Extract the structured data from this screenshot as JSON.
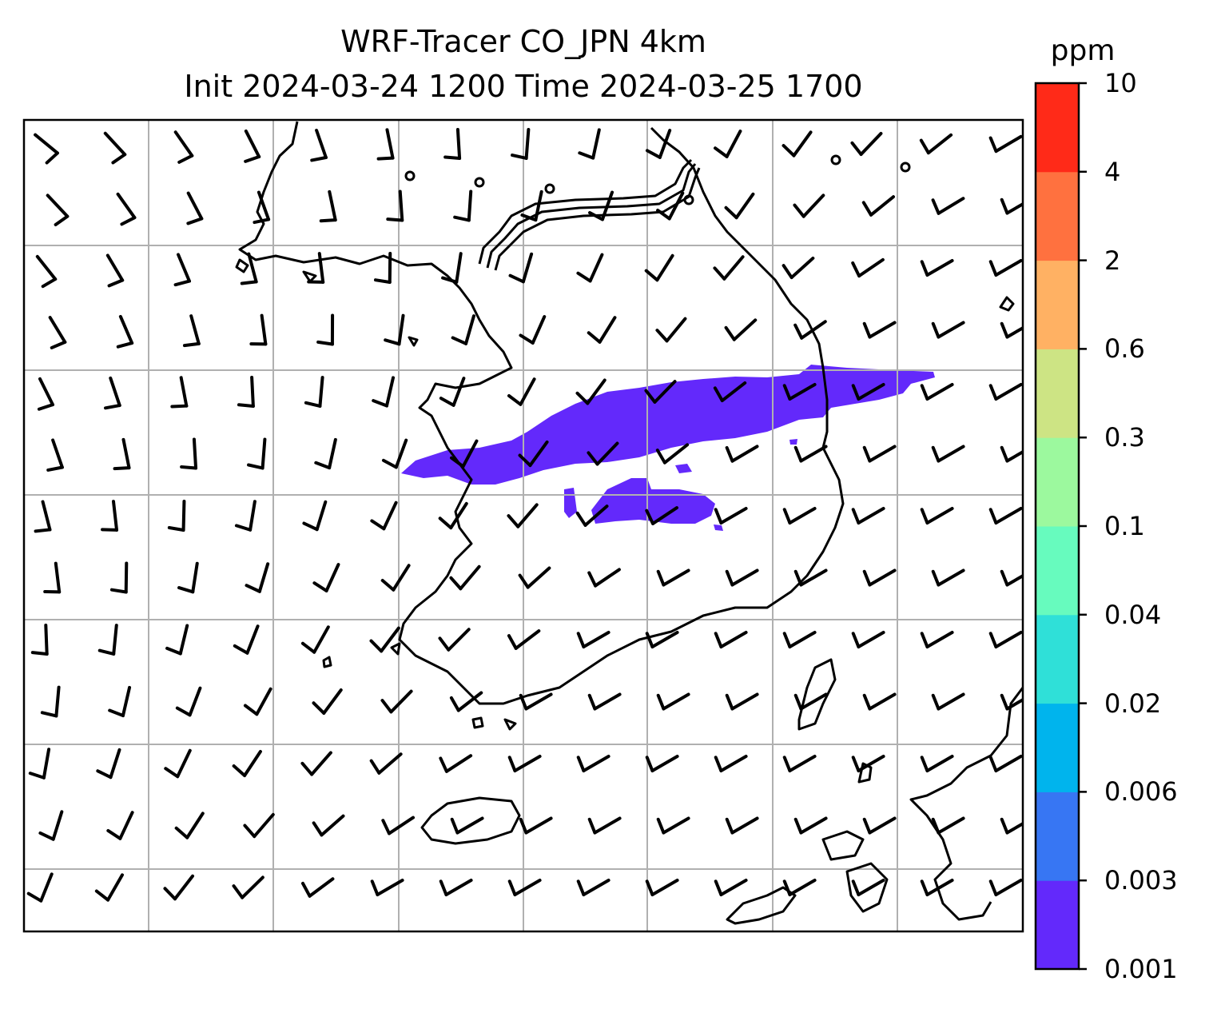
{
  "title": {
    "line1": "WRF-Tracer CO_JPN 4km",
    "line2": "Init 2024-03-24 1200 Time 2024-03-25 1700"
  },
  "colorbar": {
    "unit": "ppm",
    "levels": [
      "0.001",
      "0.003",
      "0.006",
      "0.02",
      "0.04",
      "0.1",
      "0.3",
      "0.6",
      "2",
      "4",
      "10"
    ],
    "colors": [
      "#6329fb",
      "#3776f3",
      "#00b4ed",
      "#2fe0d8",
      "#67fbbe",
      "#9cf99e",
      "#cde484",
      "#ffb163",
      "#ff713f",
      "#ff2a18"
    ]
  },
  "map": {
    "grid_lines": true,
    "plume_color": "#6329fb",
    "features": [
      "coastline",
      "wind-barbs",
      "CO-plume"
    ]
  }
}
